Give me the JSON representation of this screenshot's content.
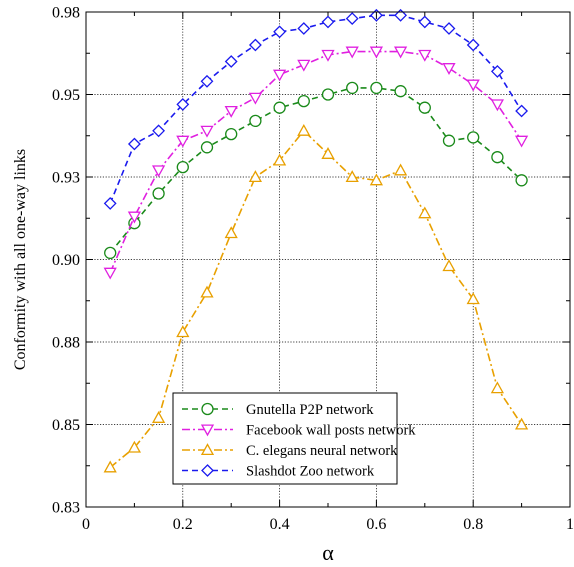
{
  "chart_data": {
    "type": "line",
    "xlabel": "α",
    "ylabel": "Conformity with all one-way links",
    "xlim": [
      0,
      1
    ],
    "ylim": [
      0.825,
      0.975
    ],
    "x_ticks": [
      0,
      0.2,
      0.4,
      0.6,
      0.8,
      1
    ],
    "x_tick_labels": [
      "0",
      "0.2",
      "0.4",
      "0.6",
      "0.8",
      "1"
    ],
    "y_ticks": [
      0.825,
      0.85,
      0.875,
      0.9,
      0.925,
      0.95,
      0.975
    ],
    "y_tick_labels": [
      "0.83",
      "0.85",
      "0.88",
      "0.90",
      "0.93",
      "0.95",
      "0.98"
    ],
    "grid": true,
    "legend_position": "bottom-center",
    "x": [
      0.05,
      0.1,
      0.15,
      0.2,
      0.25,
      0.3,
      0.35,
      0.4,
      0.45,
      0.5,
      0.55,
      0.6,
      0.65,
      0.7,
      0.75,
      0.8,
      0.85,
      0.9
    ],
    "series": [
      {
        "name": "Gnutella P2P network",
        "color": "#1a8a1a",
        "marker": "circle",
        "dash": "dash",
        "values": [
          0.902,
          0.911,
          0.92,
          0.928,
          0.934,
          0.938,
          0.942,
          0.946,
          0.948,
          0.95,
          0.952,
          0.952,
          0.951,
          0.946,
          0.936,
          0.937,
          0.931,
          0.924
        ]
      },
      {
        "name": "Facebook wall posts network",
        "color": "#e020e0",
        "marker": "triangle-down",
        "dash": "dashdot",
        "values": [
          0.896,
          0.913,
          0.927,
          0.936,
          0.939,
          0.945,
          0.949,
          0.956,
          0.959,
          0.962,
          0.963,
          0.963,
          0.963,
          0.962,
          0.958,
          0.953,
          0.947,
          0.936
        ]
      },
      {
        "name": "C. elegans neural network",
        "color": "#e8a000",
        "marker": "triangle-up",
        "dash": "dashdot",
        "values": [
          0.837,
          0.843,
          0.852,
          0.878,
          0.89,
          0.908,
          0.925,
          0.93,
          0.939,
          0.932,
          0.925,
          0.924,
          0.927,
          0.914,
          0.898,
          0.888,
          0.861,
          0.85
        ]
      },
      {
        "name": "Slashdot Zoo network",
        "color": "#1a1aee",
        "marker": "diamond",
        "dash": "dash",
        "values": [
          0.917,
          0.935,
          0.939,
          0.947,
          0.954,
          0.96,
          0.965,
          0.969,
          0.97,
          0.972,
          0.973,
          0.974,
          0.974,
          0.972,
          0.97,
          0.965,
          0.957,
          0.945
        ]
      }
    ]
  }
}
